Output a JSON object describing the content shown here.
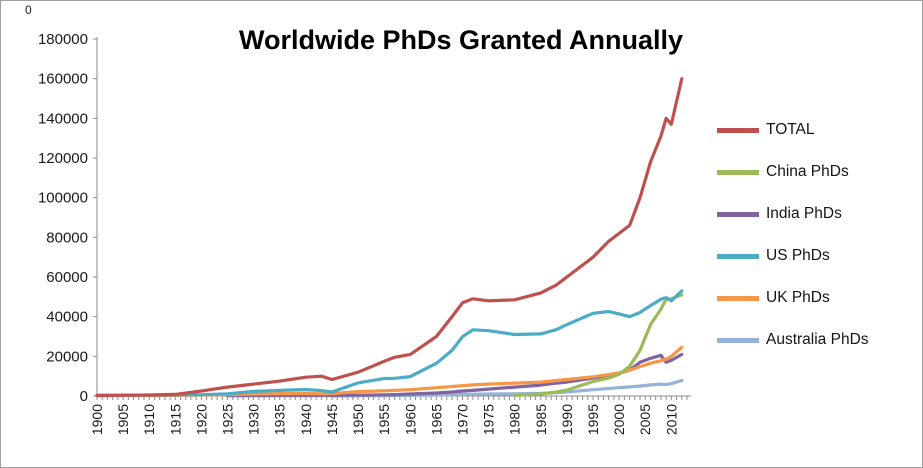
{
  "stray_text": "0",
  "chart_data": {
    "type": "line",
    "title": "Worldwide PhDs Granted Annually",
    "xlabel": "",
    "ylabel": "",
    "ylim": [
      0,
      180000
    ],
    "y_tick_step": 20000,
    "x_range": [
      1900,
      2013
    ],
    "x_ticks_labeled": [
      1900,
      1905,
      1910,
      1915,
      1920,
      1925,
      1930,
      1935,
      1940,
      1945,
      1950,
      1955,
      1960,
      1965,
      1970,
      1975,
      1980,
      1985,
      1990,
      1995,
      2000,
      2005,
      2010
    ],
    "grid": false,
    "legend_position": "right",
    "axis_color": "#8c8c8c",
    "tick_label_color": "#1a1a1a",
    "x": [
      1900,
      1905,
      1910,
      1915,
      1920,
      1925,
      1930,
      1935,
      1940,
      1943,
      1945,
      1950,
      1955,
      1957,
      1960,
      1965,
      1968,
      1970,
      1972,
      1975,
      1980,
      1985,
      1988,
      1990,
      1995,
      1998,
      2000,
      2002,
      2004,
      2006,
      2008,
      2009,
      2010,
      2012
    ],
    "series": [
      {
        "name": "TOTAL",
        "color": "#C0504D",
        "values": [
          300,
          400,
          500,
          800,
          2500,
          4500,
          6000,
          7500,
          9500,
          10000,
          8300,
          12000,
          17500,
          19500,
          21000,
          30000,
          40000,
          47000,
          49000,
          48000,
          48500,
          52000,
          56000,
          60000,
          70000,
          78000,
          82000,
          86000,
          100000,
          118000,
          131000,
          140000,
          137000,
          160000
        ]
      },
      {
        "name": "China PhDs",
        "color": "#9BBB59",
        "values": [
          null,
          null,
          null,
          null,
          null,
          null,
          null,
          null,
          null,
          null,
          null,
          null,
          null,
          null,
          null,
          null,
          null,
          null,
          null,
          null,
          300,
          1000,
          2000,
          3000,
          7300,
          9000,
          11000,
          15000,
          23000,
          36000,
          43800,
          48700,
          49000,
          51000
        ]
      },
      {
        "name": "India PhDs",
        "color": "#8064A2",
        "values": [
          null,
          null,
          null,
          null,
          null,
          150,
          200,
          250,
          250,
          250,
          300,
          400,
          600,
          700,
          1000,
          1500,
          2000,
          2500,
          2800,
          3500,
          4500,
          5500,
          6500,
          7000,
          9000,
          10500,
          11500,
          13000,
          17000,
          19000,
          20500,
          17000,
          18000,
          21000
        ]
      },
      {
        "name": "US PhDs",
        "color": "#4BACC6",
        "values": [
          300,
          350,
          450,
          550,
          650,
          1100,
          2300,
          2800,
          3300,
          2700,
          2000,
          6600,
          8800,
          8900,
          9800,
          16500,
          23000,
          29900,
          33400,
          32900,
          31000,
          31300,
          33500,
          36000,
          41700,
          42600,
          41400,
          40000,
          42100,
          45600,
          48800,
          49600,
          48000,
          53000
        ]
      },
      {
        "name": "UK PhDs",
        "color": "#F79646",
        "values": [
          150,
          200,
          250,
          300,
          500,
          700,
          1000,
          1200,
          1300,
          1100,
          1200,
          2200,
          2600,
          2800,
          3200,
          4200,
          4800,
          5200,
          5600,
          6000,
          6500,
          7000,
          7800,
          8300,
          9700,
          10800,
          11700,
          13000,
          14800,
          16500,
          17800,
          18500,
          20000,
          24500
        ]
      },
      {
        "name": "Australia PhDs",
        "color": "#95B3D7",
        "values": [
          null,
          null,
          null,
          null,
          null,
          null,
          null,
          null,
          null,
          null,
          50,
          100,
          200,
          250,
          300,
          500,
          650,
          800,
          900,
          1000,
          1100,
          1300,
          1700,
          2000,
          3200,
          3800,
          4200,
          4600,
          5000,
          5600,
          6000,
          5800,
          6200,
          7800
        ]
      }
    ]
  }
}
